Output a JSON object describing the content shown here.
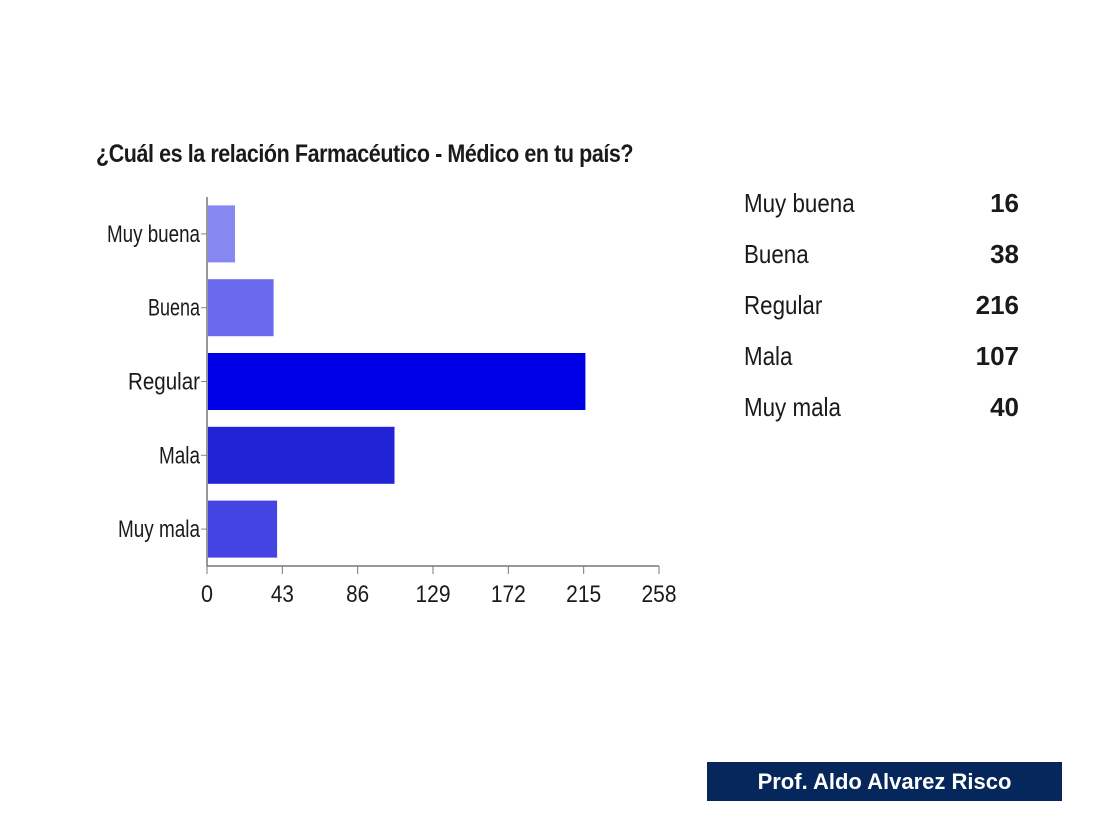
{
  "chart_data": {
    "type": "bar",
    "orientation": "horizontal",
    "title": "¿Cuál es la relación Farmacéutico - Médico en tu país?",
    "categories": [
      "Muy buena",
      "Buena",
      "Regular",
      "Mala",
      "Muy mala"
    ],
    "values": [
      16,
      38,
      216,
      107,
      40
    ],
    "xlim": [
      0,
      258
    ],
    "xticks": [
      "0",
      "43",
      "86",
      "129",
      "172",
      "215",
      "258"
    ],
    "bar_colors": [
      "#8787f2",
      "#6a6aee",
      "#0000e6",
      "#2222d6",
      "#4444e2"
    ],
    "grid": false
  },
  "summary": [
    {
      "label": "Muy buena",
      "value": "16"
    },
    {
      "label": "Buena",
      "value": "38"
    },
    {
      "label": "Regular",
      "value": "216"
    },
    {
      "label": "Mala",
      "value": "107"
    },
    {
      "label": "Muy mala",
      "value": "40"
    }
  ],
  "footer": {
    "text": "Prof. Aldo Alvarez Risco",
    "background": "#06275b"
  }
}
